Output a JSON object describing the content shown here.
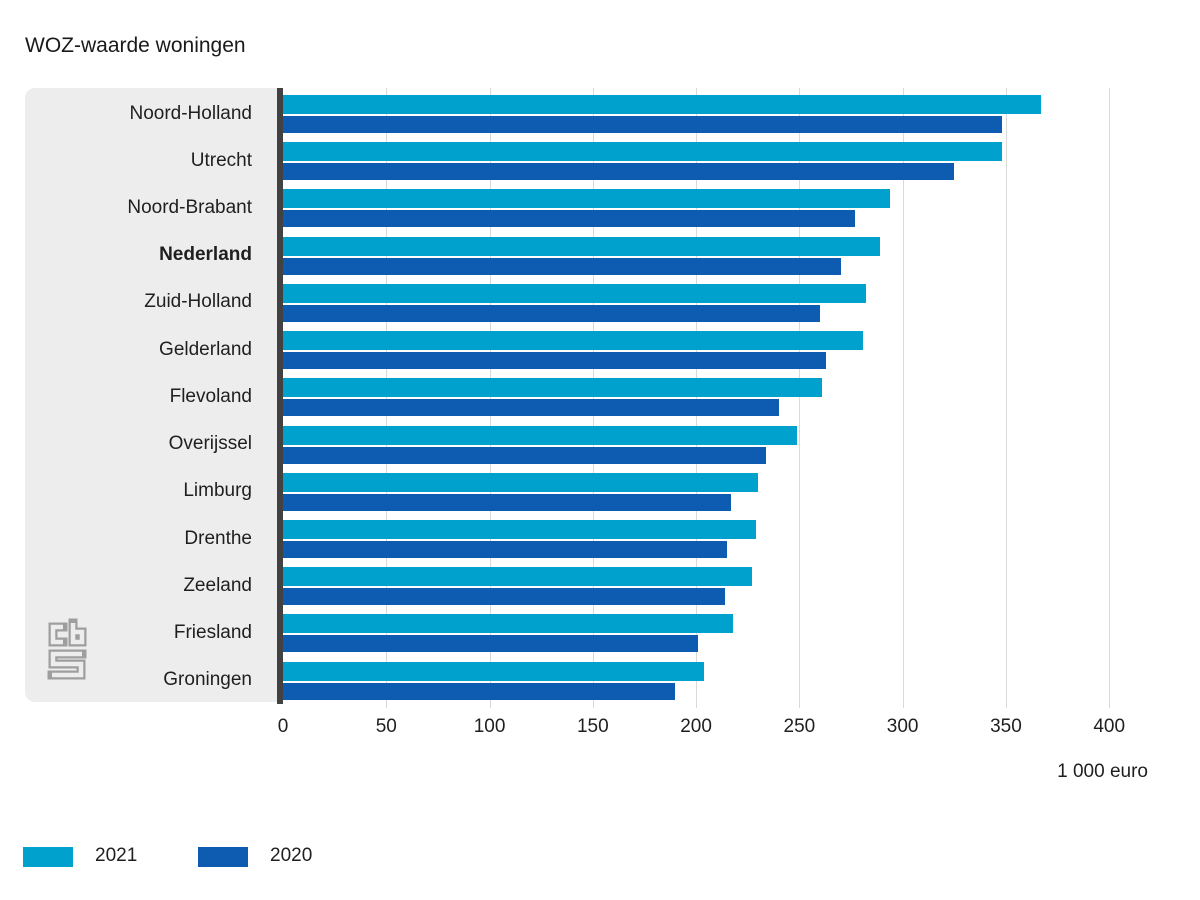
{
  "title": "WOZ-waarde woningen",
  "x_axis": {
    "ticks": [
      0,
      50,
      100,
      150,
      200,
      250,
      300,
      350,
      400
    ],
    "unit_label": "1 000 euro"
  },
  "legend": {
    "items": [
      {
        "label": "2021",
        "color": "#00a1cd"
      },
      {
        "label": "2020",
        "color": "#0e5bb2"
      }
    ]
  },
  "logo": {
    "name": "CBS"
  },
  "colors": {
    "series_2021": "#00a1cd",
    "series_2020": "#0e5bb2",
    "panel_bg": "#ededed",
    "axis_line": "#424242",
    "gridline": "#d9d9d9",
    "text": "#1f1f1f",
    "logo_outline": "#9e9e9e"
  },
  "chart_data": {
    "type": "bar",
    "orientation": "horizontal",
    "title": "WOZ-waarde woningen",
    "xlabel": "1 000 euro",
    "xlim": [
      0,
      400
    ],
    "x_ticks": [
      0,
      50,
      100,
      150,
      200,
      250,
      300,
      350,
      400
    ],
    "grid": true,
    "legend_position": "bottom-left",
    "unit": "1 000 euro",
    "categories": [
      "Noord-Holland",
      "Utrecht",
      "Noord-Brabant",
      "Nederland",
      "Zuid-Holland",
      "Gelderland",
      "Flevoland",
      "Overijssel",
      "Limburg",
      "Drenthe",
      "Zeeland",
      "Friesland",
      "Groningen"
    ],
    "emphasized_category": "Nederland",
    "series": [
      {
        "name": "2021",
        "color": "#00a1cd",
        "values": [
          367,
          348,
          294,
          289,
          282,
          281,
          261,
          249,
          230,
          229,
          227,
          218,
          204
        ]
      },
      {
        "name": "2020",
        "color": "#0e5bb2",
        "values": [
          348,
          325,
          277,
          270,
          260,
          263,
          240,
          234,
          217,
          215,
          214,
          201,
          190
        ]
      }
    ]
  }
}
